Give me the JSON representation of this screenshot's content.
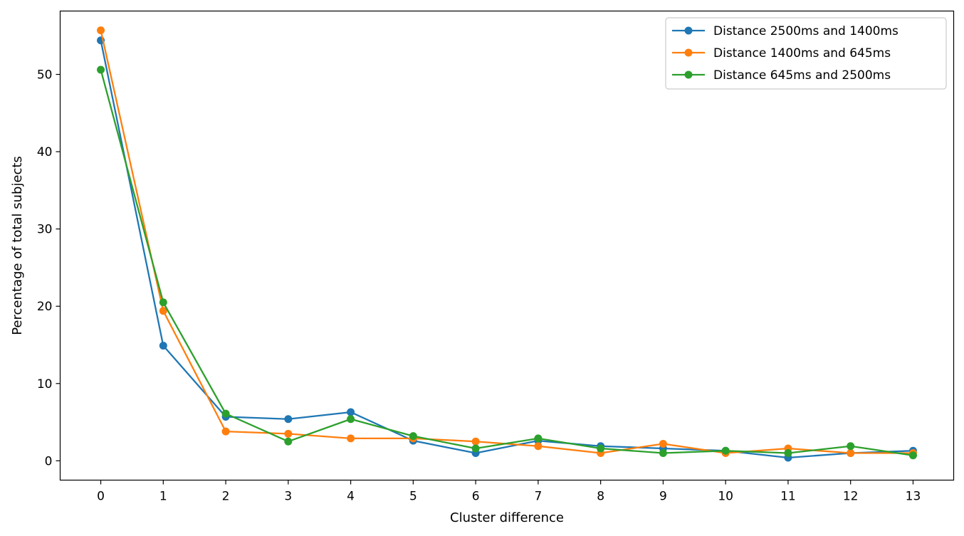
{
  "chart_data": {
    "type": "line",
    "title": "",
    "xlabel": "Cluster difference",
    "ylabel": "Percentage of total subjects",
    "x": [
      0,
      1,
      2,
      3,
      4,
      5,
      6,
      7,
      8,
      9,
      10,
      11,
      12,
      13
    ],
    "xlim": [
      -0.65,
      13.65
    ],
    "ylim": [
      -2.5,
      58.2
    ],
    "x_ticks": [
      0,
      1,
      2,
      3,
      4,
      5,
      6,
      7,
      8,
      9,
      10,
      11,
      12,
      13
    ],
    "y_ticks": [
      0,
      10,
      20,
      30,
      40,
      50
    ],
    "grid": false,
    "legend_position": "top-right",
    "series": [
      {
        "name": "Distance 2500ms and 1400ms",
        "color": "#1f77b4",
        "values": [
          54.4,
          14.9,
          5.7,
          5.4,
          6.3,
          2.6,
          1.0,
          2.6,
          1.9,
          1.6,
          1.3,
          0.4,
          1.0,
          1.3
        ]
      },
      {
        "name": "Distance 1400ms and 645ms",
        "color": "#ff7f0e",
        "values": [
          55.7,
          19.4,
          3.8,
          3.5,
          2.9,
          2.9,
          2.5,
          1.9,
          1.0,
          2.2,
          1.0,
          1.6,
          1.0,
          1.0
        ]
      },
      {
        "name": "Distance 645ms and 2500ms",
        "color": "#2ca02c",
        "values": [
          50.6,
          20.5,
          6.1,
          2.5,
          5.4,
          3.2,
          1.6,
          2.9,
          1.6,
          1.0,
          1.3,
          1.0,
          1.9,
          0.7
        ]
      }
    ]
  }
}
